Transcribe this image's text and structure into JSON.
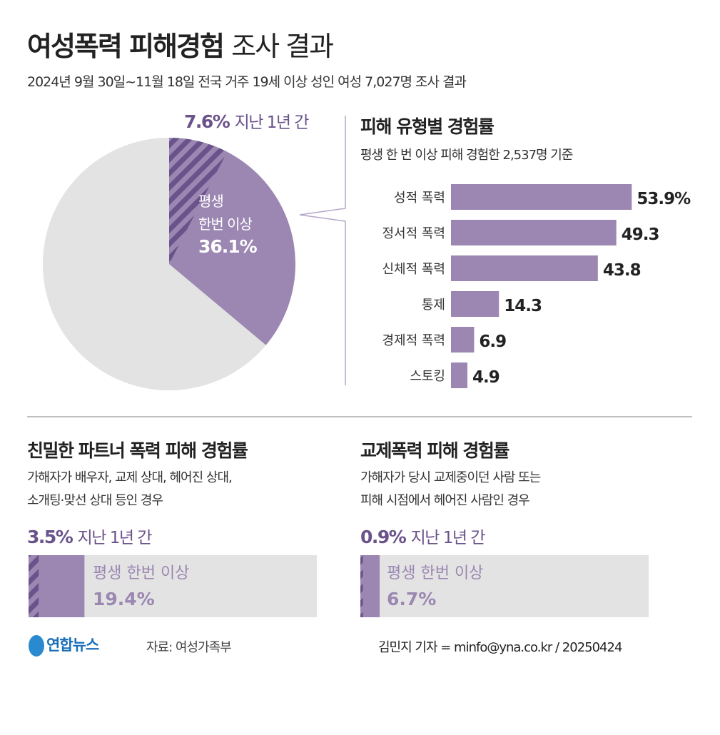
{
  "header": {
    "title_bold": "여성폭력 피해경험",
    "title_light": "조사 결과",
    "subtitle": "2024년 9월 30일~11월 18일 전국 거주 19세 이상 성인 여성 7,027명 조사 결과"
  },
  "colors": {
    "dark": "#6a528a",
    "mid": "#9b87b2",
    "light": "#e3e3e3"
  },
  "chart_data": [
    {
      "type": "pie",
      "slices": [
        {
          "label": "평생 한번 이상",
          "value": 36.1,
          "display": "36.1%",
          "line1": "평생",
          "line2": "한번 이상"
        },
        {
          "label": "지난 1년 간",
          "value": 7.6,
          "display": "7.6%",
          "suffix": "지난 1년 간",
          "hatched": true
        }
      ]
    },
    {
      "type": "bar",
      "orientation": "horizontal",
      "title": "피해 유형별 경험률",
      "subtitle": "평생 한 번 이상 피해 경험한 2,537명 기준",
      "categories": [
        "성적 폭력",
        "정서적 폭력",
        "신체적 폭력",
        "통제",
        "경제적 폭력",
        "스토킹"
      ],
      "values": [
        53.9,
        49.3,
        43.8,
        14.3,
        6.9,
        4.9
      ],
      "labels": [
        "53.9%",
        "49.3",
        "43.8",
        "14.3",
        "6.9",
        "4.9"
      ]
    },
    {
      "type": "bar",
      "title": "친밀한 파트너 폭력 피해 경험률",
      "note1": "가해자가 배우자, 교제 상대, 헤어진 상대,",
      "note2": "소개팅·맞선 상대 등인 경우",
      "year_value": 3.5,
      "year_display": "3.5%",
      "year_suffix": "지난 1년 간",
      "life_label": "평생 한번 이상",
      "life_value": 19.4,
      "life_display": "19.4%"
    },
    {
      "type": "bar",
      "title": "교제폭력 피해 경험률",
      "note1": "가해자가 당시 교제중이던 사람 또는",
      "note2": "피해 시점에서 헤어진 사람인 경우",
      "year_value": 0.9,
      "year_display": "0.9%",
      "year_suffix": "지난 1년 간",
      "life_label": "평생 한번 이상",
      "life_value": 6.7,
      "life_display": "6.7%"
    }
  ],
  "footer": {
    "logo": "연합뉴스",
    "source": "자료: 여성가족부",
    "credit": "김민지 기자 = minfo@yna.co.kr / 20250424"
  }
}
